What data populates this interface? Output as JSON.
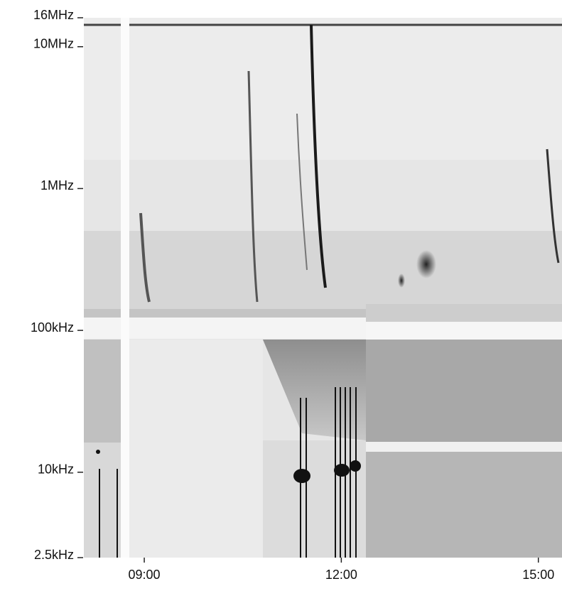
{
  "chart_data": {
    "type": "spectrogram",
    "xlim": [
      8.08,
      15.36
    ],
    "xticks": [
      {
        "value": 9,
        "label": "09:00"
      },
      {
        "value": 12,
        "label": "12:00"
      },
      {
        "value": 15,
        "label": "15:00"
      }
    ],
    "ylim": [
      2500,
      16000000
    ],
    "yscale": "log",
    "yticks": [
      {
        "value": 16000000,
        "label": "16MHz"
      },
      {
        "value": 10000000,
        "label": "10MHz"
      },
      {
        "value": 1000000,
        "label": "1MHz"
      },
      {
        "value": 100000,
        "label": "100kHz"
      },
      {
        "value": 10000,
        "label": "10kHz"
      },
      {
        "value": 2500,
        "label": "2.5kHz"
      }
    ]
  }
}
